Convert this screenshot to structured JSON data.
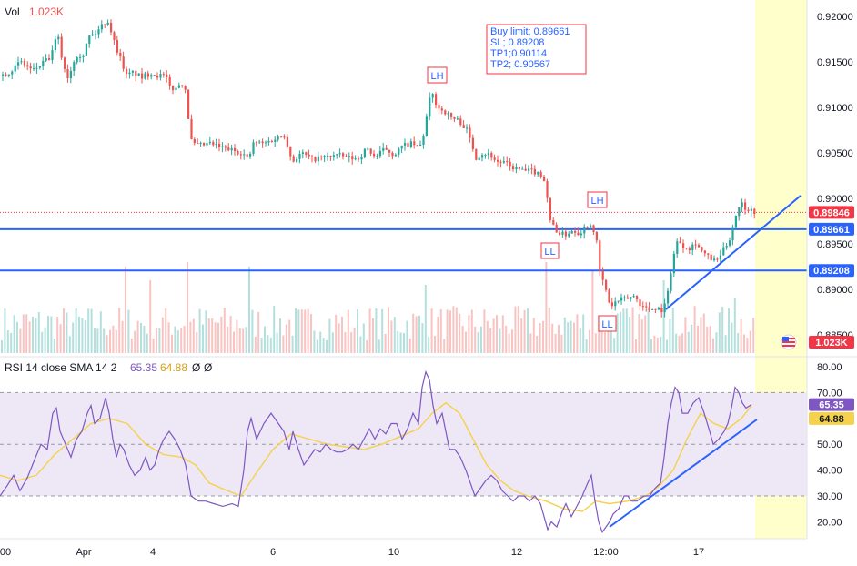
{
  "colors": {
    "up": "#26a69a",
    "down": "#ef5350",
    "level": "#2962ff",
    "rsi": "#7e57c2",
    "sma": "#f5d24a",
    "rsi_band": "#ede7f6",
    "highlight": "#ffffcc",
    "price_label": "#f23645",
    "axis_text": "#131722"
  },
  "header": {
    "vol_label": "Vol",
    "vol_value": "1.023K"
  },
  "trade_box": {
    "lines": [
      "Buy limit; 0.89661",
      "SL; 0.89208",
      "TP1;0.90114",
      "TP2; 0.90567"
    ]
  },
  "annotations": [
    {
      "text": "LH",
      "at": "swing high Apr 10"
    },
    {
      "text": "LH",
      "at": "swing high Apr 13"
    },
    {
      "text": "LL",
      "at": "swing low Apr 12"
    },
    {
      "text": "LL",
      "at": "swing low Apr 13"
    }
  ],
  "chart_data": [
    {
      "type": "candlestick",
      "title": "",
      "x_ticks": [
        "00",
        "Apr",
        "4",
        "6",
        "10",
        "12",
        "12:00",
        "17"
      ],
      "price_ticks": [
        0.92,
        0.915,
        0.91,
        0.905,
        0.9,
        0.895,
        0.89,
        0.885
      ],
      "price_tick_labels": [
        "0.92000",
        "0.91500",
        "0.91000",
        "0.90500",
        "0.90000",
        "0.89500",
        "0.89000",
        "0.88500"
      ],
      "ylim": [
        0.8838,
        0.921
      ],
      "current_price": {
        "value": 0.89846,
        "label": "0.89846"
      },
      "levels": [
        {
          "name": "Buy limit",
          "value": 0.89661,
          "label": "0.89661"
        },
        {
          "name": "SL",
          "value": 0.89208,
          "label": "0.89208"
        }
      ],
      "volume_label": "1.023K",
      "close_path": [
        [
          0,
          0.9135
        ],
        [
          10,
          0.914
        ],
        [
          22,
          0.915
        ],
        [
          35,
          0.914
        ],
        [
          45,
          0.9148
        ],
        [
          55,
          0.9155
        ],
        [
          62,
          0.9182
        ],
        [
          68,
          0.9148
        ],
        [
          74,
          0.9132
        ],
        [
          82,
          0.9158
        ],
        [
          90,
          0.9158
        ],
        [
          97,
          0.9178
        ],
        [
          105,
          0.9182
        ],
        [
          112,
          0.9192
        ],
        [
          118,
          0.9195
        ],
        [
          125,
          0.917
        ],
        [
          132,
          0.9152
        ],
        [
          138,
          0.9135
        ],
        [
          145,
          0.9138
        ],
        [
          155,
          0.9133
        ],
        [
          165,
          0.9138
        ],
        [
          172,
          0.9135
        ],
        [
          180,
          0.9135
        ],
        [
          186,
          0.9122
        ],
        [
          192,
          0.912
        ],
        [
          198,
          0.9128
        ],
        [
          204,
          0.9118
        ],
        [
          207,
          0.9075
        ],
        [
          210,
          0.906
        ],
        [
          218,
          0.9058
        ],
        [
          230,
          0.906
        ],
        [
          245,
          0.9055
        ],
        [
          258,
          0.9052
        ],
        [
          265,
          0.905
        ],
        [
          272,
          0.9043
        ],
        [
          278,
          0.9062
        ],
        [
          288,
          0.906
        ],
        [
          300,
          0.9065
        ],
        [
          312,
          0.907
        ],
        [
          320,
          0.904
        ],
        [
          330,
          0.905
        ],
        [
          342,
          0.9043
        ],
        [
          355,
          0.9045
        ],
        [
          368,
          0.9048
        ],
        [
          380,
          0.9045
        ],
        [
          392,
          0.9043
        ],
        [
          402,
          0.9055
        ],
        [
          412,
          0.9045
        ],
        [
          422,
          0.9055
        ],
        [
          432,
          0.9048
        ],
        [
          442,
          0.9058
        ],
        [
          452,
          0.906
        ],
        [
          460,
          0.9055
        ],
        [
          466,
          0.9075
        ],
        [
          470,
          0.9105
        ],
        [
          474,
          0.9115
        ],
        [
          480,
          0.91
        ],
        [
          488,
          0.9095
        ],
        [
          496,
          0.9088
        ],
        [
          504,
          0.9085
        ],
        [
          512,
          0.9075
        ],
        [
          518,
          0.9058
        ],
        [
          522,
          0.9045
        ],
        [
          530,
          0.905
        ],
        [
          538,
          0.9048
        ],
        [
          545,
          0.904
        ],
        [
          552,
          0.904
        ],
        [
          560,
          0.9035
        ],
        [
          568,
          0.9032
        ],
        [
          576,
          0.903
        ],
        [
          584,
          0.903
        ],
        [
          590,
          0.9028
        ],
        [
          596,
          0.9025
        ],
        [
          600,
          0.9005
        ],
        [
          603,
          0.8975
        ],
        [
          608,
          0.897
        ],
        [
          612,
          0.8962
        ],
        [
          620,
          0.896
        ],
        [
          628,
          0.8965
        ],
        [
          636,
          0.8962
        ],
        [
          644,
          0.897
        ],
        [
          650,
          0.8972
        ],
        [
          655,
          0.895
        ],
        [
          658,
          0.892
        ],
        [
          662,
          0.8908
        ],
        [
          666,
          0.8895
        ],
        [
          670,
          0.888
        ],
        [
          674,
          0.8885
        ],
        [
          680,
          0.8888
        ],
        [
          688,
          0.889
        ],
        [
          696,
          0.8893
        ],
        [
          704,
          0.8882
        ],
        [
          712,
          0.8878
        ],
        [
          720,
          0.888
        ],
        [
          728,
          0.8877
        ],
        [
          732,
          0.889
        ],
        [
          736,
          0.8918
        ],
        [
          740,
          0.894
        ],
        [
          744,
          0.8955
        ],
        [
          748,
          0.895
        ],
        [
          756,
          0.8945
        ],
        [
          764,
          0.8952
        ],
        [
          770,
          0.8942
        ],
        [
          778,
          0.8935
        ],
        [
          786,
          0.893
        ],
        [
          792,
          0.894
        ],
        [
          798,
          0.895
        ],
        [
          802,
          0.8958
        ],
        [
          806,
          0.8975
        ],
        [
          810,
          0.899
        ],
        [
          814,
          0.8995
        ],
        [
          818,
          0.899
        ],
        [
          824,
          0.8987
        ],
        [
          830,
          0.8985
        ]
      ]
    },
    {
      "type": "line",
      "title": "RSI 14 close SMA 14 2",
      "legend": [
        {
          "name": "RSI 14",
          "value": "65.35"
        },
        {
          "name": "SMA 14",
          "value": "64.88"
        }
      ],
      "legend_extra": [
        "Ø",
        "Ø"
      ],
      "y_ticks": [
        80,
        70,
        60,
        50,
        40,
        30,
        20
      ],
      "y_tick_labels": [
        "80.00",
        "70.00",
        "60.00",
        "50.00",
        "40.00",
        "30.00",
        "20.00"
      ],
      "ylim": [
        15,
        82
      ],
      "band": [
        30,
        70
      ],
      "midline": 50,
      "rsi_last": {
        "value": 65.35,
        "label": "65.35"
      },
      "sma_last": {
        "value": 64.88,
        "label": "64.88"
      },
      "rsi_path": [
        [
          0,
          30
        ],
        [
          8,
          34
        ],
        [
          15,
          38
        ],
        [
          22,
          32
        ],
        [
          30,
          37
        ],
        [
          38,
          44
        ],
        [
          45,
          50
        ],
        [
          52,
          48
        ],
        [
          58,
          62
        ],
        [
          62,
          64
        ],
        [
          66,
          55
        ],
        [
          72,
          50
        ],
        [
          78,
          45
        ],
        [
          84,
          52
        ],
        [
          90,
          55
        ],
        [
          96,
          62
        ],
        [
          100,
          65
        ],
        [
          104,
          58
        ],
        [
          110,
          60
        ],
        [
          116,
          68
        ],
        [
          120,
          62
        ],
        [
          124,
          52
        ],
        [
          128,
          45
        ],
        [
          132,
          50
        ],
        [
          136,
          48
        ],
        [
          142,
          42
        ],
        [
          148,
          38
        ],
        [
          154,
          40
        ],
        [
          160,
          45
        ],
        [
          165,
          40
        ],
        [
          170,
          42
        ],
        [
          175,
          48
        ],
        [
          180,
          52
        ],
        [
          186,
          55
        ],
        [
          192,
          52
        ],
        [
          198,
          48
        ],
        [
          204,
          42
        ],
        [
          210,
          30
        ],
        [
          218,
          28
        ],
        [
          226,
          28
        ],
        [
          235,
          27
        ],
        [
          245,
          26
        ],
        [
          255,
          27
        ],
        [
          262,
          26
        ],
        [
          268,
          40
        ],
        [
          272,
          55
        ],
        [
          276,
          60
        ],
        [
          282,
          52
        ],
        [
          290,
          58
        ],
        [
          298,
          62
        ],
        [
          306,
          58
        ],
        [
          312,
          55
        ],
        [
          318,
          48
        ],
        [
          322,
          55
        ],
        [
          328,
          48
        ],
        [
          334,
          42
        ],
        [
          340,
          45
        ],
        [
          346,
          48
        ],
        [
          352,
          47
        ],
        [
          358,
          50
        ],
        [
          364,
          48
        ],
        [
          370,
          47
        ],
        [
          376,
          47
        ],
        [
          382,
          48
        ],
        [
          388,
          50
        ],
        [
          394,
          48
        ],
        [
          400,
          52
        ],
        [
          406,
          56
        ],
        [
          412,
          52
        ],
        [
          418,
          56
        ],
        [
          424,
          54
        ],
        [
          430,
          58
        ],
        [
          436,
          58
        ],
        [
          442,
          52
        ],
        [
          448,
          56
        ],
        [
          454,
          62
        ],
        [
          460,
          58
        ],
        [
          464,
          72
        ],
        [
          468,
          78
        ],
        [
          472,
          75
        ],
        [
          476,
          65
        ],
        [
          480,
          58
        ],
        [
          486,
          62
        ],
        [
          490,
          55
        ],
        [
          494,
          48
        ],
        [
          500,
          48
        ],
        [
          506,
          45
        ],
        [
          512,
          40
        ],
        [
          518,
          34
        ],
        [
          522,
          30
        ],
        [
          528,
          33
        ],
        [
          534,
          36
        ],
        [
          540,
          38
        ],
        [
          546,
          36
        ],
        [
          552,
          32
        ],
        [
          558,
          30
        ],
        [
          564,
          28
        ],
        [
          570,
          30
        ],
        [
          576,
          30
        ],
        [
          582,
          28
        ],
        [
          588,
          30
        ],
        [
          594,
          27
        ],
        [
          598,
          22
        ],
        [
          602,
          17
        ],
        [
          606,
          20
        ],
        [
          612,
          18
        ],
        [
          618,
          24
        ],
        [
          622,
          27
        ],
        [
          628,
          22
        ],
        [
          634,
          26
        ],
        [
          640,
          30
        ],
        [
          646,
          35
        ],
        [
          650,
          38
        ],
        [
          654,
          28
        ],
        [
          658,
          20
        ],
        [
          662,
          16
        ],
        [
          666,
          18
        ],
        [
          670,
          20
        ],
        [
          674,
          23
        ],
        [
          680,
          25
        ],
        [
          686,
          30
        ],
        [
          690,
          30
        ],
        [
          694,
          28
        ],
        [
          700,
          28
        ],
        [
          708,
          30
        ],
        [
          714,
          30
        ],
        [
          720,
          33
        ],
        [
          726,
          35
        ],
        [
          730,
          45
        ],
        [
          734,
          58
        ],
        [
          738,
          66
        ],
        [
          742,
          72
        ],
        [
          746,
          70
        ],
        [
          750,
          62
        ],
        [
          756,
          62
        ],
        [
          762,
          66
        ],
        [
          768,
          68
        ],
        [
          774,
          62
        ],
        [
          780,
          55
        ],
        [
          784,
          50
        ],
        [
          790,
          52
        ],
        [
          796,
          55
        ],
        [
          800,
          58
        ],
        [
          804,
          64
        ],
        [
          808,
          72
        ],
        [
          812,
          70
        ],
        [
          816,
          66
        ],
        [
          820,
          64
        ],
        [
          826,
          65.35
        ]
      ],
      "sma_path": [
        [
          0,
          38
        ],
        [
          20,
          36
        ],
        [
          40,
          38
        ],
        [
          60,
          46
        ],
        [
          80,
          52
        ],
        [
          100,
          58
        ],
        [
          120,
          60
        ],
        [
          140,
          58
        ],
        [
          160,
          50
        ],
        [
          180,
          46
        ],
        [
          200,
          45
        ],
        [
          215,
          42
        ],
        [
          230,
          35
        ],
        [
          250,
          32
        ],
        [
          265,
          30
        ],
        [
          280,
          38
        ],
        [
          300,
          48
        ],
        [
          320,
          54
        ],
        [
          340,
          52
        ],
        [
          360,
          50
        ],
        [
          380,
          49
        ],
        [
          400,
          48
        ],
        [
          420,
          50
        ],
        [
          440,
          53
        ],
        [
          460,
          56
        ],
        [
          475,
          62
        ],
        [
          490,
          66
        ],
        [
          505,
          62
        ],
        [
          520,
          52
        ],
        [
          535,
          42
        ],
        [
          550,
          36
        ],
        [
          565,
          32
        ],
        [
          580,
          30
        ],
        [
          600,
          28
        ],
        [
          620,
          25
        ],
        [
          640,
          24
        ],
        [
          655,
          28
        ],
        [
          670,
          27
        ],
        [
          690,
          28
        ],
        [
          710,
          30
        ],
        [
          725,
          34
        ],
        [
          740,
          40
        ],
        [
          755,
          52
        ],
        [
          770,
          62
        ],
        [
          785,
          58
        ],
        [
          800,
          56
        ],
        [
          815,
          60
        ],
        [
          826,
          64.88
        ]
      ]
    }
  ]
}
